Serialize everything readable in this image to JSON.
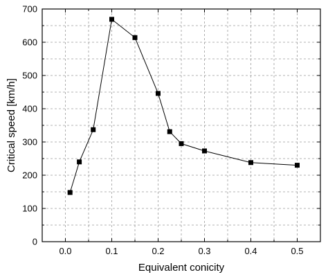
{
  "chart_data": {
    "type": "line",
    "xlabel": "Equivalent conicity",
    "ylabel": "Critical speed [km/h]",
    "xlim": [
      -0.05,
      0.55
    ],
    "ylim": [
      0,
      700
    ],
    "x_ticks": [
      0.0,
      0.1,
      0.2,
      0.3,
      0.4,
      0.5
    ],
    "x_tick_labels": [
      "0.0",
      "0.1",
      "0.2",
      "0.3",
      "0.4",
      "0.5"
    ],
    "y_ticks": [
      0,
      100,
      200,
      300,
      400,
      500,
      600,
      700
    ],
    "y_tick_labels": [
      "0",
      "100",
      "200",
      "300",
      "400",
      "500",
      "600",
      "700"
    ],
    "grid": true,
    "marker": "square",
    "color": "#000000",
    "series": [
      {
        "x": [
          0.01,
          0.03,
          0.06,
          0.1,
          0.15,
          0.2,
          0.225,
          0.25,
          0.3,
          0.4,
          0.5
        ],
        "y": [
          148,
          240,
          337,
          669,
          614,
          446,
          331,
          295,
          273,
          238,
          230
        ]
      }
    ]
  }
}
